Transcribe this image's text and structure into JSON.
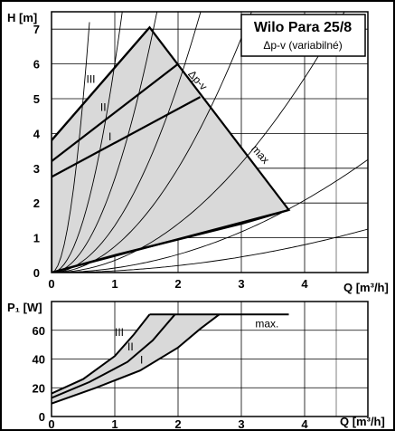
{
  "chart_data": [
    {
      "type": "line",
      "title": "Wilo Para 25/8",
      "subtitle": "Δp-v (variabilné)",
      "ylabel": "H [m]",
      "xlabel": "Q [m³/h]",
      "xlim": [
        0,
        5
      ],
      "ylim": [
        0,
        7.5
      ],
      "xticks": [
        "0",
        "1",
        "2",
        "3",
        "4"
      ],
      "yticks": [
        "0",
        "1",
        "2",
        "3",
        "4",
        "5",
        "6",
        "7"
      ],
      "grid": true,
      "operating_area_fill": "#d9d9d9",
      "envelope": {
        "name": "Δp-v",
        "points": [
          [
            0,
            3.8
          ],
          [
            1.55,
            7.05
          ],
          [
            3.75,
            1.8
          ],
          [
            0,
            0
          ]
        ]
      },
      "lower_curve": [
        [
          0,
          0
        ],
        [
          1,
          0.5
        ],
        [
          2,
          0.95
        ],
        [
          3,
          1.4
        ],
        [
          3.75,
          1.8
        ]
      ],
      "curve_labels": [
        {
          "text": "Δp-v",
          "x": 2.15,
          "y": 5.7,
          "angle": -48
        },
        {
          "text": "max",
          "x": 3.15,
          "y": 3.55,
          "angle": -48
        }
      ],
      "series": [
        {
          "name": "III",
          "values": [
            [
              0,
              3.8
            ],
            [
              1.55,
              7.05
            ]
          ],
          "label_at": [
            0.55,
            5.45
          ]
        },
        {
          "name": "II",
          "values": [
            [
              0,
              3.2
            ],
            [
              2.0,
              6.0
            ]
          ],
          "label_at": [
            0.77,
            4.65
          ]
        },
        {
          "name": "I",
          "values": [
            [
              0,
              2.75
            ],
            [
              2.35,
              5.05
            ]
          ],
          "label_at": [
            0.9,
            3.8
          ]
        }
      ],
      "system_curves_k": [
        20,
        6,
        2.7,
        1.35,
        0.75,
        0.35,
        0.13,
        0.05
      ]
    },
    {
      "type": "line",
      "ylabel": "P₁ [W]",
      "xlabel": "Q [m³/h]",
      "xlim": [
        0,
        5
      ],
      "ylim": [
        0,
        80
      ],
      "xticks": [
        "0",
        "1",
        "2",
        "3",
        "4"
      ],
      "yticks": [
        "0",
        "20",
        "40",
        "60"
      ],
      "grid": true,
      "operating_area_fill": "#d9d9d9",
      "series": [
        {
          "name": "III",
          "values": [
            [
              0,
              16
            ],
            [
              0.5,
              26
            ],
            [
              1.0,
              42
            ],
            [
              1.3,
              57
            ],
            [
              1.55,
              71
            ]
          ],
          "label_at": [
            1.0,
            56
          ]
        },
        {
          "name": "II",
          "values": [
            [
              0,
              13
            ],
            [
              0.6,
              24
            ],
            [
              1.2,
              38
            ],
            [
              1.6,
              53
            ],
            [
              1.95,
              71
            ]
          ],
          "label_at": [
            1.2,
            46
          ]
        },
        {
          "name": "I",
          "values": [
            [
              0,
              9
            ],
            [
              0.7,
              20
            ],
            [
              1.4,
              32
            ],
            [
              2.0,
              48
            ],
            [
              2.35,
              61
            ],
            [
              2.65,
              71
            ]
          ],
          "label_at": [
            1.4,
            37
          ]
        }
      ],
      "max_line": {
        "name": "max.",
        "y": 71,
        "x_from": 1.55,
        "x_to": 3.75,
        "label_at": [
          3.22,
          62
        ]
      }
    }
  ]
}
